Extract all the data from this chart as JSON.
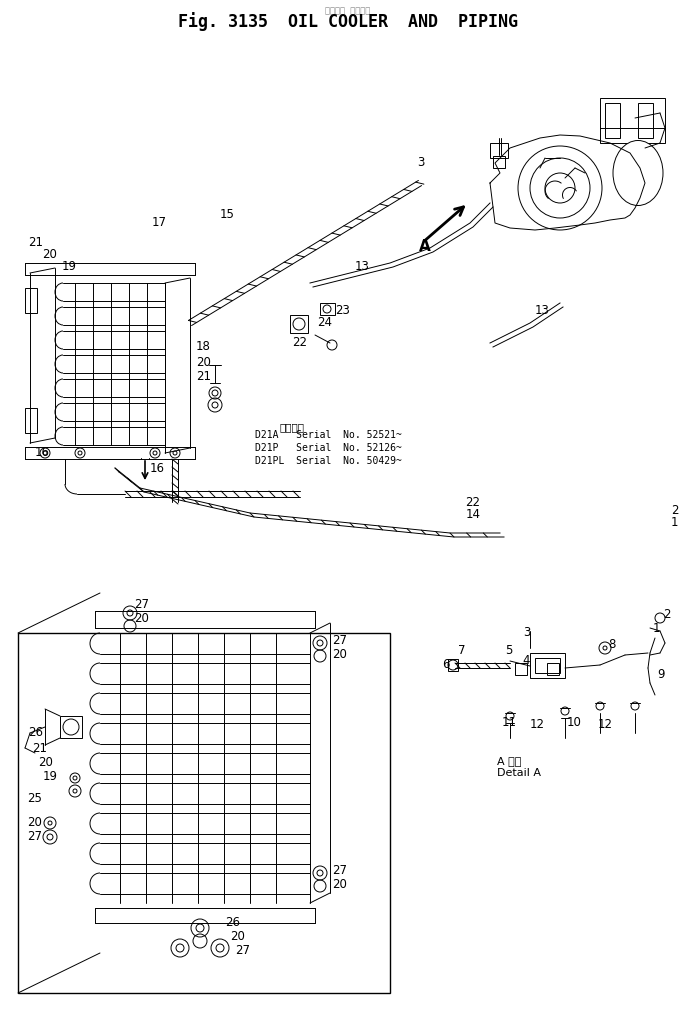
{
  "title1": "Fig. 3135  OIL COOLER  AND  PIPING",
  "title_jp": "通用番号",
  "serial": [
    "D21A   Serial  No. 52521~",
    "D21P   Serial  No. 52126~",
    "D21PL  Serial  No. 50429~"
  ],
  "bg": "#ffffff",
  "lc": "#000000"
}
